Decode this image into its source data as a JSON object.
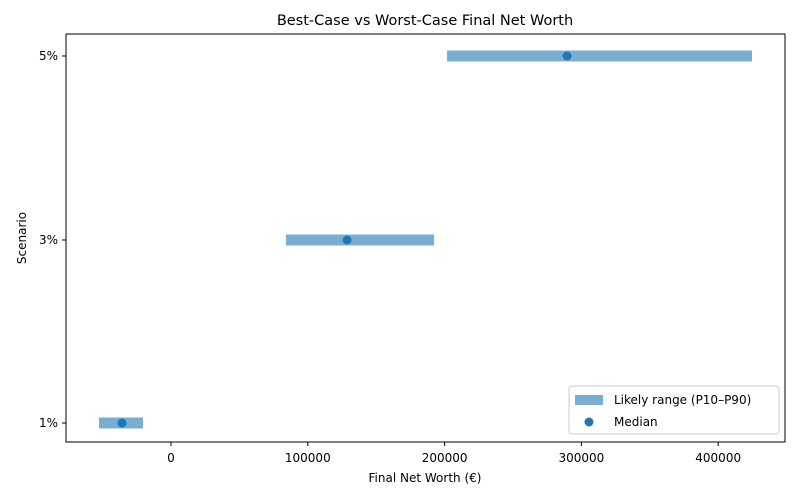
{
  "chart_data": {
    "type": "range",
    "title": "Best-Case vs Worst-Case Final Net Worth",
    "xlabel": "Final Net Worth (€)",
    "ylabel": "Scenario",
    "xlim": [
      -72000,
      450000
    ],
    "x_ticks": [
      0,
      100000,
      200000,
      300000,
      400000
    ],
    "x_tick_labels": [
      "0",
      "100000",
      "200000",
      "300000",
      "400000"
    ],
    "categories": [
      "1%",
      "3%",
      "5%"
    ],
    "series": [
      {
        "name": "Likely range (P10–P90)",
        "kind": "range",
        "low": [
          -52600,
          84000,
          201800
        ],
        "high": [
          -20500,
          192300,
          424700
        ],
        "color": "#1f77b4",
        "alpha": 0.6
      },
      {
        "name": "Median",
        "kind": "scatter",
        "values": [
          -35800,
          128700,
          289500
        ],
        "color": "#1f77b4"
      }
    ],
    "grid": false,
    "legend_position": "lower right"
  },
  "legend": {
    "items": [
      {
        "label": "Likely range (P10–P90)"
      },
      {
        "label": "Median"
      }
    ]
  }
}
